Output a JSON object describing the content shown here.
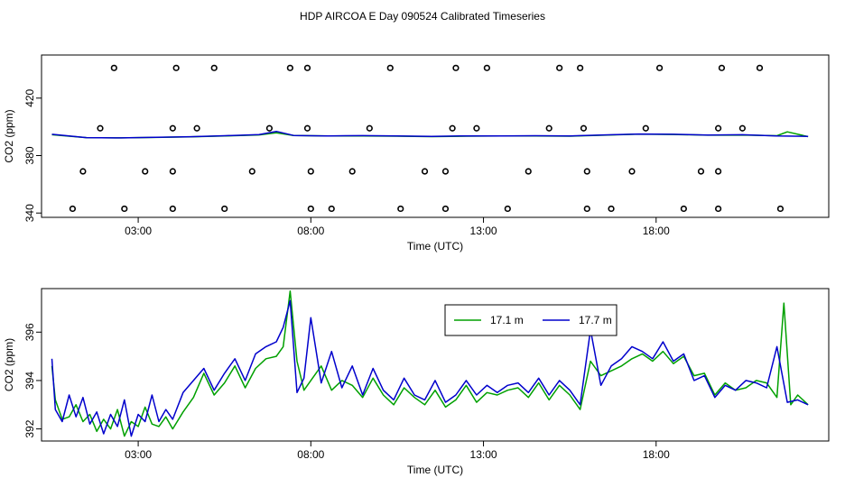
{
  "figure": {
    "title": "HDP AIRCOA E  Day 090524  Calibrated Timeseries"
  },
  "chart_data": [
    {
      "type": "line+scatter",
      "xlabel": "Time (UTC)",
      "ylabel": "CO2 (ppm)",
      "x_unit": "hours UTC",
      "xlim": [
        0.2,
        23.0
      ],
      "ylim": [
        337,
        450
      ],
      "x_ticks": [
        {
          "value": 3,
          "label": "03:00"
        },
        {
          "value": 8,
          "label": "08:00"
        },
        {
          "value": 13,
          "label": "13:00"
        },
        {
          "value": 18,
          "label": "18:00"
        }
      ],
      "y_ticks": [
        {
          "value": 340,
          "label": "340"
        },
        {
          "value": 380,
          "label": "380"
        },
        {
          "value": 420,
          "label": "420"
        }
      ],
      "grid": false,
      "series": [
        {
          "color": "#00a000",
          "style": "line",
          "x": [
            0.5,
            1.5,
            2.5,
            3.5,
            4.5,
            5.5,
            6.5,
            7.0,
            7.5,
            8.5,
            9.5,
            10.5,
            11.5,
            12.5,
            13.5,
            14.5,
            15.5,
            16.5,
            17.5,
            18.5,
            19.5,
            20.5,
            21.5,
            21.8,
            22.4
          ],
          "y": [
            394.5,
            392.5,
            392.3,
            392.6,
            393.0,
            393.6,
            394.4,
            395.8,
            394.0,
            393.6,
            393.7,
            393.5,
            393.2,
            393.5,
            393.6,
            393.7,
            393.5,
            394.2,
            394.9,
            394.7,
            394.2,
            394.3,
            393.8,
            396.5,
            393.2
          ]
        },
        {
          "color": "#0000cc",
          "style": "line",
          "x": [
            0.5,
            1.5,
            2.5,
            3.5,
            4.5,
            5.5,
            6.5,
            7.0,
            7.5,
            8.5,
            9.5,
            10.5,
            11.5,
            12.5,
            13.5,
            14.5,
            15.5,
            16.5,
            17.5,
            18.5,
            19.5,
            20.5,
            21.5,
            22.4
          ],
          "y": [
            394.8,
            392.5,
            392.3,
            392.7,
            393.1,
            393.8,
            394.6,
            396.8,
            394.0,
            393.7,
            393.9,
            393.6,
            393.4,
            393.7,
            393.7,
            393.8,
            393.6,
            394.4,
            395.0,
            394.8,
            394.3,
            394.5,
            393.6,
            393.4
          ]
        },
        {
          "color": "#000000",
          "style": "points",
          "x": [
            2.3,
            4.1,
            5.2,
            7.4,
            7.9,
            10.3,
            12.2,
            13.1,
            15.2,
            15.8,
            18.1,
            19.9,
            21.0,
            1.9,
            4.0,
            4.7,
            6.8,
            7.9,
            9.7,
            12.1,
            12.8,
            14.9,
            15.9,
            17.7,
            19.8,
            20.5,
            1.4,
            3.2,
            4.0,
            6.3,
            8.0,
            9.2,
            11.3,
            11.9,
            14.3,
            16.0,
            17.3,
            19.3,
            19.8,
            1.1,
            2.6,
            4.0,
            5.5,
            8.0,
            8.6,
            10.6,
            11.9,
            13.7,
            16.0,
            16.7,
            18.8,
            19.8,
            21.6
          ],
          "y": [
            441,
            441,
            441,
            441,
            441,
            441,
            441,
            441,
            441,
            441,
            441,
            441,
            441,
            399,
            399,
            399,
            399,
            399,
            399,
            399,
            399,
            399,
            399,
            399,
            399,
            399,
            369,
            369,
            369,
            369,
            369,
            369,
            369,
            369,
            369,
            369,
            369,
            369,
            369,
            343,
            343,
            343,
            343,
            343,
            343,
            343,
            343,
            343,
            343,
            343,
            343,
            343,
            343
          ]
        }
      ]
    },
    {
      "type": "line",
      "xlabel": "Time (UTC)",
      "ylabel": "CO2 (ppm)",
      "x_unit": "hours UTC",
      "xlim": [
        0.2,
        23.0
      ],
      "ylim": [
        391.5,
        397.8
      ],
      "x_ticks": [
        {
          "value": 3,
          "label": "03:00"
        },
        {
          "value": 8,
          "label": "08:00"
        },
        {
          "value": 13,
          "label": "13:00"
        },
        {
          "value": 18,
          "label": "18:00"
        }
      ],
      "y_ticks": [
        {
          "value": 392,
          "label": "392"
        },
        {
          "value": 394,
          "label": "394"
        },
        {
          "value": 396,
          "label": "396"
        }
      ],
      "grid": false,
      "legend_position": "top-right",
      "series": [
        {
          "name": "17.1 m",
          "color": "#00a000",
          "x": [
            0.5,
            0.6,
            0.8,
            1.0,
            1.2,
            1.4,
            1.6,
            1.8,
            2.0,
            2.2,
            2.4,
            2.6,
            2.8,
            3.0,
            3.2,
            3.4,
            3.6,
            3.8,
            4.0,
            4.3,
            4.6,
            4.9,
            5.2,
            5.5,
            5.8,
            6.1,
            6.4,
            6.7,
            7.0,
            7.2,
            7.4,
            7.6,
            7.8,
            8.0,
            8.3,
            8.6,
            8.9,
            9.2,
            9.5,
            9.8,
            10.1,
            10.4,
            10.7,
            11.0,
            11.3,
            11.6,
            11.9,
            12.2,
            12.5,
            12.8,
            13.1,
            13.4,
            13.7,
            14.0,
            14.3,
            14.6,
            14.9,
            15.2,
            15.5,
            15.8,
            16.1,
            16.4,
            16.7,
            17.0,
            17.3,
            17.6,
            17.9,
            18.2,
            18.5,
            18.8,
            19.1,
            19.4,
            19.7,
            20.0,
            20.3,
            20.6,
            20.9,
            21.2,
            21.5,
            21.7,
            21.9,
            22.1,
            22.4
          ],
          "y": [
            394.6,
            393.2,
            392.4,
            392.5,
            393.0,
            392.3,
            392.6,
            391.9,
            392.4,
            392.0,
            392.8,
            391.7,
            392.3,
            392.1,
            392.9,
            392.2,
            392.1,
            392.5,
            392.0,
            392.7,
            393.3,
            394.3,
            393.4,
            393.9,
            394.6,
            393.7,
            394.5,
            394.9,
            395.0,
            395.4,
            397.7,
            394.8,
            393.6,
            394.0,
            394.6,
            393.6,
            394.0,
            393.8,
            393.3,
            394.1,
            393.4,
            393.0,
            393.7,
            393.3,
            393.0,
            393.6,
            392.9,
            393.2,
            393.8,
            393.1,
            393.5,
            393.4,
            393.6,
            393.7,
            393.3,
            393.9,
            393.2,
            393.8,
            393.4,
            392.8,
            394.8,
            394.2,
            394.4,
            394.6,
            394.9,
            395.1,
            394.8,
            395.2,
            394.7,
            395.0,
            394.2,
            394.3,
            393.4,
            393.9,
            393.6,
            393.7,
            394.0,
            393.9,
            393.3,
            397.2,
            393.0,
            393.4,
            393.0
          ]
        },
        {
          "name": "17.7 m",
          "color": "#0000cc",
          "x": [
            0.5,
            0.6,
            0.8,
            1.0,
            1.2,
            1.4,
            1.6,
            1.8,
            2.0,
            2.2,
            2.4,
            2.6,
            2.8,
            3.0,
            3.2,
            3.4,
            3.6,
            3.8,
            4.0,
            4.3,
            4.6,
            4.9,
            5.2,
            5.5,
            5.8,
            6.1,
            6.4,
            6.7,
            7.0,
            7.2,
            7.4,
            7.6,
            7.8,
            8.0,
            8.3,
            8.6,
            8.9,
            9.2,
            9.5,
            9.8,
            10.1,
            10.4,
            10.7,
            11.0,
            11.3,
            11.6,
            11.9,
            12.2,
            12.5,
            12.8,
            13.1,
            13.4,
            13.7,
            14.0,
            14.3,
            14.6,
            14.9,
            15.2,
            15.5,
            15.8,
            16.1,
            16.4,
            16.7,
            17.0,
            17.3,
            17.6,
            17.9,
            18.2,
            18.5,
            18.8,
            19.1,
            19.4,
            19.7,
            20.0,
            20.3,
            20.6,
            20.9,
            21.2,
            21.5,
            21.8,
            22.1,
            22.4
          ],
          "y": [
            394.9,
            392.8,
            392.3,
            393.4,
            392.5,
            393.3,
            392.2,
            392.7,
            391.8,
            392.6,
            392.1,
            393.2,
            391.7,
            392.6,
            392.3,
            393.4,
            392.3,
            392.8,
            392.4,
            393.5,
            394.0,
            394.5,
            393.6,
            394.3,
            394.9,
            394.0,
            395.1,
            395.4,
            395.6,
            396.2,
            397.3,
            393.5,
            394.1,
            396.6,
            393.9,
            395.2,
            393.7,
            394.6,
            393.4,
            394.5,
            393.6,
            393.2,
            394.1,
            393.4,
            393.2,
            394.0,
            393.1,
            393.4,
            394.0,
            393.4,
            393.8,
            393.5,
            393.8,
            393.9,
            393.5,
            394.1,
            393.4,
            394.0,
            393.6,
            393.0,
            396.1,
            393.8,
            394.6,
            394.9,
            395.4,
            395.2,
            394.9,
            395.6,
            394.8,
            395.1,
            394.0,
            394.2,
            393.3,
            393.8,
            393.6,
            394.0,
            393.9,
            393.7,
            395.4,
            393.1,
            393.2,
            393.0
          ]
        }
      ]
    }
  ]
}
